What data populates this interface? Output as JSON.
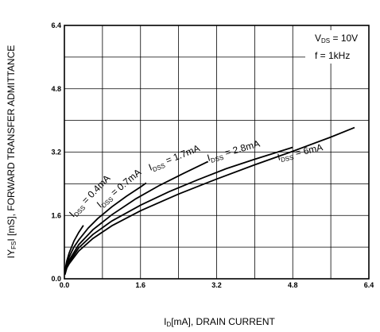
{
  "chart_data": {
    "type": "line",
    "xlabel": {
      "main": "I",
      "sub": "D",
      "rest": "[mA], DRAIN CURRENT"
    },
    "ylabel": {
      "pre": "IY",
      "sub": "FS",
      "rest": "I [mS], FORWARD TRANSFER ADMITTANCE"
    },
    "xlim": [
      0,
      6.4
    ],
    "ylim": [
      0,
      6.4
    ],
    "x_ticks": [
      "0.0",
      "1.6",
      "3.2",
      "4.8",
      "6.4"
    ],
    "y_ticks": [
      "0.0",
      "1.6",
      "3.2",
      "4.8",
      "6.4"
    ],
    "grid": true,
    "conditions": [
      {
        "main": "V",
        "sub": "DS",
        "rest": " = 10V"
      },
      {
        "main": "f = 1kHz",
        "sub": "",
        "rest": ""
      }
    ],
    "series": [
      {
        "label": {
          "main": "I",
          "sub": "DSS",
          "rest": " = 0.4mA"
        },
        "x": [
          0.01,
          0.05,
          0.1,
          0.2,
          0.3,
          0.4
        ],
        "y": [
          0.2,
          0.45,
          0.65,
          0.95,
          1.17,
          1.35
        ]
      },
      {
        "label": {
          "main": "I",
          "sub": "DSS",
          "rest": " = 0.7mA"
        },
        "x": [
          0.01,
          0.05,
          0.1,
          0.2,
          0.3,
          0.5,
          0.7,
          1.0,
          1.3,
          1.6,
          1.72
        ],
        "y": [
          0.16,
          0.38,
          0.55,
          0.8,
          0.98,
          1.28,
          1.52,
          1.82,
          2.08,
          2.32,
          2.42
        ]
      },
      {
        "label": {
          "main": "I",
          "sub": "DSS",
          "rest": " = 1.7mA"
        },
        "x": [
          0.01,
          0.05,
          0.1,
          0.3,
          0.6,
          1.0,
          1.5,
          2.0,
          2.5,
          3.0,
          3.02
        ],
        "y": [
          0.14,
          0.33,
          0.47,
          0.86,
          1.24,
          1.62,
          2.02,
          2.36,
          2.66,
          2.95,
          2.96
        ]
      },
      {
        "label": {
          "main": "I",
          "sub": "DSS",
          "rest": " = 2.8mA"
        },
        "x": [
          0.01,
          0.05,
          0.1,
          0.3,
          0.6,
          1.0,
          1.6,
          2.2,
          2.8,
          3.4,
          4.0,
          4.8
        ],
        "y": [
          0.12,
          0.3,
          0.42,
          0.78,
          1.12,
          1.46,
          1.86,
          2.2,
          2.5,
          2.78,
          3.02,
          3.32
        ]
      },
      {
        "label": {
          "main": "I",
          "sub": "DSS",
          "rest": " = 6mA"
        },
        "x": [
          0.01,
          0.05,
          0.1,
          0.3,
          0.6,
          1.0,
          1.6,
          2.4,
          3.2,
          4.0,
          4.8,
          5.6,
          6.1
        ],
        "y": [
          0.1,
          0.27,
          0.38,
          0.7,
          1.02,
          1.34,
          1.72,
          2.14,
          2.52,
          2.88,
          3.22,
          3.58,
          3.82
        ]
      }
    ]
  }
}
